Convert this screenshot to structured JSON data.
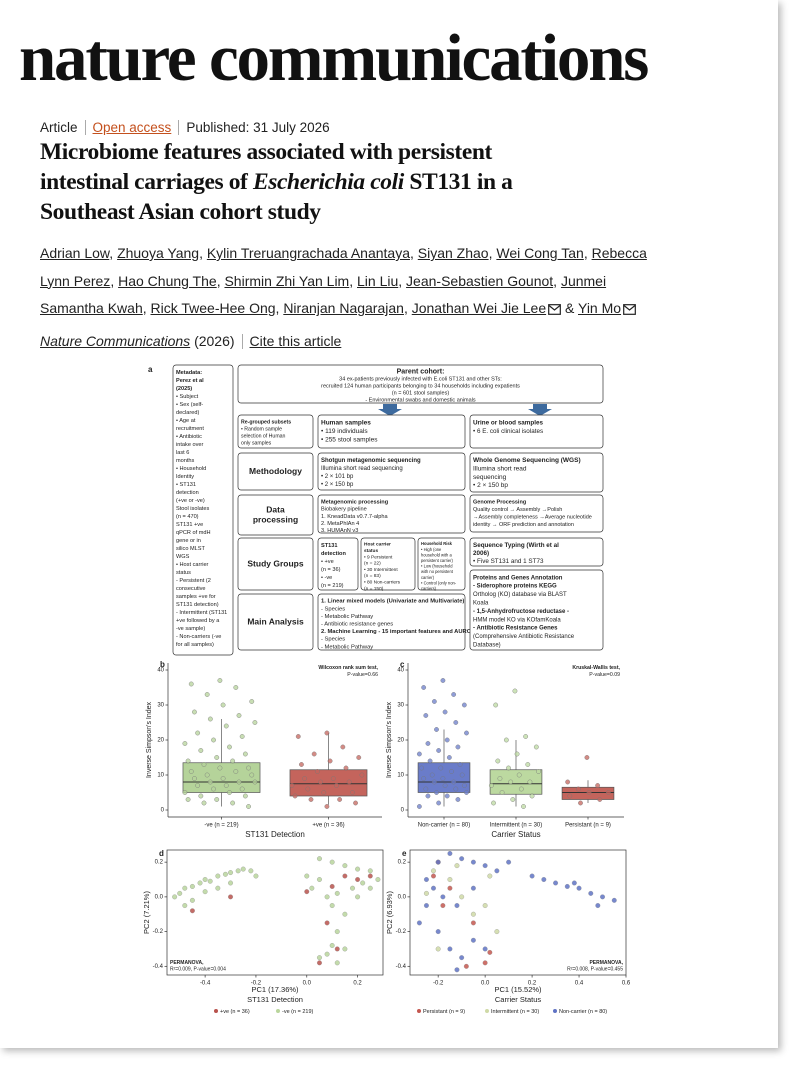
{
  "header": {
    "brand": "nature communications"
  },
  "article": {
    "type": "Article",
    "access": "Open access",
    "published": "Published: 31 July 2026",
    "title_before": "Microbiome features associated with persistent intestinal carriages of",
    "title_italic": "Escherichia coli",
    "title_after": "ST131 in a Southeast Asian cohort study",
    "authors": [
      "Adrian Low",
      "Zhuoya Yang",
      "Kylin Treruangrachada Anantaya",
      "Siyan Zhao",
      "Wei Cong Tan",
      "Rebecca Lynn Perez",
      "Hao Chung The",
      "Shirmin Zhi Yan Lim",
      "Lin Liu",
      "Jean-Sebastien Gounot",
      "Junmei Samantha Kwah",
      "Rick Twee-Hee Ong",
      "Niranjan Nagarajan",
      "Jonathan Wei Jie Lee",
      "Yin Mo"
    ],
    "separator": ",",
    "last_separator": "&",
    "journal": "Nature Communications",
    "year": "(2026)",
    "cite": "Cite this article"
  },
  "figure": {
    "a": {
      "label": "a",
      "boxes": [
        {
          "lines": [
            "Metadata:",
            "Perez et al",
            "(2025)",
            "• Subject",
            "• Sex (self-",
            "declared)",
            "• Age at",
            "recruitment",
            "• Antibiotic",
            "intake over",
            "last 6",
            "months",
            "• Household",
            "Identity",
            "• ST131",
            "detection",
            "(+ve or -ve)",
            "Stool isolates",
            "(n = 470)",
            "ST131 +ve",
            "qPCR of mdH",
            "gene or in",
            "silico MLST",
            "WGS",
            "• Host carrier",
            "status",
            "- Persistent (2",
            "consecutive",
            "samples +ve for",
            "ST131 detection)",
            "- Intermittent (ST131",
            "+ve followed by a",
            "-ve sample)",
            "- Non-carriers (-ve",
            "for all samples)"
          ]
        },
        {
          "lines": [
            "Parent cohort:",
            "34 ex-patients previously infected with E.coli ST131 and other STs:",
            "recruited 124 human participants belonging to 34 households including expatients",
            "(n = 601 stool samples)",
            "- Environmental swabs and domestic animals"
          ]
        },
        {
          "lines": [
            "Re-grouped subsets",
            "• Random sample",
            "selection of Human",
            "only samples"
          ]
        },
        {
          "lines": [
            "Human samples",
            "• 119 individuals",
            "• 255 stool samples"
          ]
        },
        {
          "lines": [
            "Urine or blood samples",
            "• 6 E. coli clinical isolates"
          ]
        },
        {
          "lines": [
            "Methodology"
          ]
        },
        {
          "lines": [
            "Shotgun metagenomic sequencing",
            "Illumina short read sequencing",
            "• 2 × 101 bp",
            "• 2 × 150 bp"
          ]
        },
        {
          "lines": [
            "Whole Genome Sequencing (WGS)",
            "Illumina short read",
            "sequencing",
            "• 2 × 150 bp"
          ]
        },
        {
          "lines": [
            "Data",
            "processing"
          ]
        },
        {
          "lines": [
            "Metagenomic processing",
            "Biobakery pipeline",
            "1. KneadData v0.7.7-alpha",
            "2. MetaPhlAn 4",
            "3. HUMAnN v3"
          ]
        },
        {
          "lines": [
            "Genome Processing",
            "Quality control → Assembly →Polish",
            "→Assembly completeness →Average nucleotide",
            "identity → ORF prediction and annotation"
          ]
        },
        {
          "lines": [
            "Study Groups"
          ]
        },
        {
          "lines": [
            "ST131",
            "detection",
            "• +ve",
            "(n = 36)",
            "• -ve",
            "(n = 219)"
          ]
        },
        {
          "lines": [
            "Host carrier",
            "status",
            "• 9 Persistent",
            "(n = 22)",
            "• 30 Intermittent",
            "(n = 83)",
            "• 80 Non-carriers",
            "(n = 150)"
          ]
        },
        {
          "lines": [
            "Household Risk",
            "• High (one",
            "household with a",
            "persistent carrier)",
            "• Low (household",
            "with no persistent",
            "carrier)",
            "• Control (only non-",
            "carriers)"
          ]
        },
        {
          "lines": [
            "Sequence Typing (Wirth et al",
            "2006)",
            "• Five ST131 and 1 ST73"
          ]
        },
        {
          "lines": [
            "Main Analysis"
          ]
        },
        {
          "lines": [
            "1. Linear mixed models (Univariate and Multivariate)",
            "- Species",
            "- Metabolic Pathway",
            "- Antibiotic resistance genes",
            "2. Machine Learning - 15 important features and AUROC",
            "- Species",
            "- Metabolic Pathway"
          ]
        },
        {
          "lines": [
            "Proteins and Genes Annotation",
            "- Siderophore proteins KEGG",
            "Ortholog (KO) database via BLAST",
            "Koala",
            "- 1,5-Anhydrofructose reductase -",
            "HMM model KO via KOfamKoala",
            "- Antibiotic Resistance Genes",
            "(Comprehensive Antibiotic Resistance",
            "Database)"
          ]
        }
      ]
    },
    "b": {
      "label": "b",
      "type": "box",
      "ylabel": "Inverse Simpson's Index",
      "xlabel": "ST131 Detection",
      "annotation": [
        "Wilcoxon rank sum test,",
        "P-value=0.66"
      ],
      "categories": [
        "-ve (n = 219)",
        "+ve (n = 36)"
      ],
      "colors": [
        "#b5d39a",
        "#c4645c"
      ],
      "ylim": [
        -2,
        42
      ],
      "yticks": [
        0,
        10,
        20,
        30,
        40
      ],
      "boxes": [
        {
          "min": 1,
          "q1": 5,
          "median": 8,
          "q3": 13.5,
          "max": 26
        },
        {
          "min": 1.5,
          "q1": 4,
          "median": 7.5,
          "q3": 11.5,
          "max": 22
        }
      ],
      "points": [
        [
          37,
          36,
          35,
          33,
          31,
          30,
          28,
          27,
          26,
          25,
          24,
          22,
          21,
          20,
          19,
          18,
          17,
          16,
          15,
          14,
          14,
          13,
          12,
          12,
          11,
          11,
          10,
          10,
          9,
          9,
          8,
          8,
          8,
          7,
          7,
          6,
          6,
          5,
          5,
          4,
          4,
          3,
          3,
          2,
          2,
          1
        ],
        [
          22,
          21,
          18,
          16,
          15,
          14,
          13,
          12,
          11,
          10,
          9,
          9,
          8,
          8,
          7,
          7,
          6,
          5,
          5,
          4,
          3,
          3,
          2,
          1
        ]
      ]
    },
    "c": {
      "label": "c",
      "type": "box",
      "ylabel": "Inverse Simpson's Index",
      "xlabel": "Carrier Status",
      "annotation": [
        "Kruskal-Wallis test,",
        "P-value=0.09"
      ],
      "categories": [
        "Non-carrier (n = 80)",
        "Intermittent (n = 30)",
        "Persistant (n = 9)"
      ],
      "colors": [
        "#6a7cc9",
        "#bcd9a0",
        "#c4645c"
      ],
      "ylim": [
        -2,
        42
      ],
      "yticks": [
        0,
        10,
        20,
        30,
        40
      ],
      "boxes": [
        {
          "min": 1,
          "q1": 5,
          "median": 8,
          "q3": 13.5,
          "max": 23
        },
        {
          "min": 1,
          "q1": 4.5,
          "median": 7.5,
          "q3": 11.5,
          "max": 20
        },
        {
          "min": 2,
          "q1": 3,
          "median": 5,
          "q3": 6.5,
          "max": 8.5
        }
      ],
      "points": [
        [
          37,
          35,
          33,
          31,
          30,
          28,
          27,
          25,
          23,
          22,
          20,
          19,
          18,
          17,
          16,
          15,
          14,
          13,
          12,
          12,
          11,
          10,
          10,
          9,
          9,
          8,
          8,
          7,
          7,
          6,
          6,
          5,
          5,
          4,
          4,
          3,
          2,
          1
        ],
        [
          34,
          30,
          21,
          20,
          18,
          16,
          14,
          13,
          12,
          11,
          10,
          9,
          8,
          8,
          7,
          6,
          5,
          4,
          3,
          2,
          1
        ],
        [
          15,
          8,
          7,
          6,
          5,
          5,
          4,
          3,
          2
        ]
      ]
    },
    "d": {
      "label": "d",
      "type": "scatter",
      "xlabel": "PC1 (17.36%)",
      "ylabel": "PC2 (7.21%)",
      "annotation": [
        "PERMANOVA,",
        "R²=0.009, P-value=0.004"
      ],
      "legend_title": "ST131 Detection",
      "xlim": [
        -0.55,
        0.3
      ],
      "xticks": [
        -0.4,
        -0.2,
        {
          "value": 0,
          "label": "0.0"
        },
        0.2
      ],
      "ylim": [
        -0.45,
        0.27
      ],
      "yticks": [
        -0.4,
        -0.2,
        {
          "value": 0,
          "label": "0.0"
        },
        0.2
      ],
      "series": [
        {
          "name": "-ve (n = 219)",
          "color": "#b9d59c",
          "x": [
            -0.5,
            -0.48,
            -0.45,
            -0.42,
            -0.4,
            -0.38,
            -0.35,
            -0.32,
            -0.3,
            -0.27,
            -0.25,
            -0.22,
            -0.2,
            -0.45,
            -0.4,
            -0.35,
            -0.3,
            -0.48,
            -0.52,
            0.05,
            0.1,
            0.15,
            0.2,
            0.25,
            0.28,
            0.22,
            0.18,
            0.12,
            0.08,
            0.05,
            0,
            0.02,
            0.1,
            0.15,
            0.12,
            0.1,
            0.08,
            0.12,
            0.05,
            0.15,
            0.2,
            0.25
          ],
          "values": [
            0.02,
            0.05,
            0.06,
            0.08,
            0.1,
            0.09,
            0.12,
            0.13,
            0.14,
            0.15,
            0.16,
            0.15,
            0.12,
            -0.02,
            0.03,
            0.05,
            0.08,
            -0.05,
            0,
            0.22,
            0.2,
            0.18,
            0.16,
            0.15,
            0.1,
            0.08,
            0.05,
            0.02,
            0,
            0.1,
            0.12,
            0.05,
            -0.05,
            -0.1,
            -0.2,
            -0.28,
            -0.33,
            -0.38,
            -0.35,
            -0.3,
            0,
            0.05
          ]
        },
        {
          "name": "+ve (n = 36)",
          "color": "#b8524c",
          "x": [
            -0.45,
            -0.3,
            0.1,
            0.15,
            0.2,
            0.08,
            0.12,
            0.05,
            0.25,
            0
          ],
          "values": [
            -0.08,
            0,
            0.06,
            0.12,
            0.1,
            -0.15,
            -0.3,
            -0.38,
            0.12,
            0.03
          ]
        }
      ]
    },
    "e": {
      "label": "e",
      "type": "scatter",
      "xlabel": "PC1 (15.52%)",
      "ylabel": "PC2 (6.93%)",
      "annotation": [
        "PERMANOVA,",
        "R²=0.008, P-value=0.455"
      ],
      "legend_title": "Carrier Status",
      "xlim": [
        -0.32,
        0.6
      ],
      "xticks": [
        -0.2,
        {
          "value": 0,
          "label": "0.0"
        },
        0.2,
        0.4,
        0.6
      ],
      "ylim": [
        -0.45,
        0.27
      ],
      "yticks": [
        -0.4,
        -0.2,
        {
          "value": 0,
          "label": "0.0"
        },
        0.2
      ],
      "series": [
        {
          "name": "Persistant (n = 9)",
          "color": "#c4574f",
          "x": [
            -0.22,
            -0.18,
            -0.08,
            0,
            -0.15,
            -0.05,
            0.02,
            -0.2
          ],
          "values": [
            0.12,
            -0.05,
            -0.4,
            -0.38,
            0.05,
            -0.15,
            -0.32,
            0.2
          ]
        },
        {
          "name": "Intermittent (n = 30)",
          "color": "#cfd9a6",
          "x": [
            -0.22,
            -0.15,
            -0.1,
            -0.05,
            0,
            -0.2,
            0.02,
            -0.25,
            0.05,
            -0.12
          ],
          "values": [
            0.15,
            0.1,
            0,
            -0.1,
            -0.05,
            -0.3,
            0.12,
            0.02,
            -0.2,
            0.18
          ]
        },
        {
          "name": "Non-carrier (n = 80)",
          "color": "#5f73c4",
          "x": [
            -0.25,
            -0.2,
            -0.15,
            -0.1,
            -0.05,
            0,
            -0.22,
            -0.18,
            -0.25,
            -0.12,
            -0.2,
            -0.15,
            -0.1,
            -0.05,
            0,
            -0.12,
            0.2,
            0.25,
            0.3,
            0.35,
            0.4,
            0.45,
            0.5,
            0.55,
            0.48,
            0.38,
            0.05,
            0.1,
            -0.05,
            -0.28
          ],
          "values": [
            0.1,
            0.2,
            0.25,
            0.22,
            0.2,
            0.18,
            0.05,
            0,
            -0.05,
            -0.05,
            -0.2,
            -0.3,
            -0.35,
            -0.25,
            -0.3,
            -0.42,
            0.12,
            0.1,
            0.08,
            0.06,
            0.05,
            0.02,
            0,
            -0.02,
            -0.05,
            0.08,
            0.15,
            0.2,
            0.05,
            -0.15
          ]
        }
      ]
    }
  }
}
